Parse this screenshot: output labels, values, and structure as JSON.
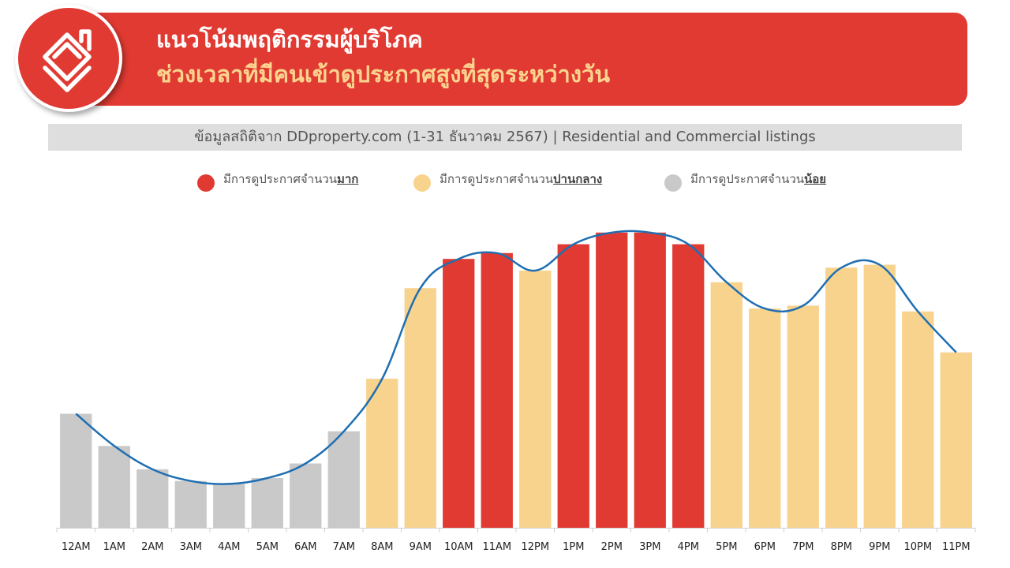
{
  "header": {
    "title_line1": "แนวโน้มพฤติกรรมผู้บริโภค",
    "title_line2": "ช่วงเวลาที่มีคนเข้าดูประกาศสูงที่สุดระหว่างวัน",
    "logo_icon": "ddproperty-house-logo-icon"
  },
  "subtitle": "ข้อมูลสถิติจาก DDproperty.com (1-31 ธันวาคม 2567) | Residential and Commercial listings",
  "legend": [
    {
      "prefix": "มีการดูประกาศจำนวน",
      "emphasis": "มาก",
      "color": "#e13a32"
    },
    {
      "prefix": "มีการดูประกาศจำนวน",
      "emphasis": "ปานกลาง",
      "color": "#f8d38e"
    },
    {
      "prefix": "มีการดูประกาศจำนวน",
      "emphasis": "น้อย",
      "color": "#c9c9c9"
    }
  ],
  "colors": {
    "high": "#e13a32",
    "medium": "#f8d38e",
    "low": "#c9c9c9",
    "trend_line": "#1f6fb2",
    "banner": "#e13a32"
  },
  "chart_data": {
    "type": "bar",
    "categories": [
      "12AM",
      "1AM",
      "2AM",
      "3AM",
      "4AM",
      "5AM",
      "6AM",
      "7AM",
      "8AM",
      "9AM",
      "10AM",
      "11AM",
      "12PM",
      "1PM",
      "2PM",
      "3PM",
      "4PM",
      "5PM",
      "6PM",
      "7PM",
      "8PM",
      "9PM",
      "10PM",
      "11PM"
    ],
    "values": [
      39,
      28,
      20,
      16,
      15,
      17,
      22,
      33,
      51,
      82,
      92,
      94,
      88,
      97,
      101,
      101,
      97,
      84,
      75,
      76,
      89,
      90,
      74,
      60
    ],
    "levels": [
      "low",
      "low",
      "low",
      "low",
      "low",
      "low",
      "low",
      "low",
      "medium",
      "medium",
      "high",
      "high",
      "medium",
      "high",
      "high",
      "high",
      "high",
      "medium",
      "medium",
      "medium",
      "medium",
      "medium",
      "medium",
      "medium"
    ],
    "trend_line": [
      39,
      28,
      20,
      16,
      15,
      17,
      22,
      33,
      51,
      82,
      92,
      94,
      88,
      97,
      101,
      101,
      97,
      84,
      75,
      76,
      89,
      90,
      74,
      60
    ],
    "ylim": [
      0,
      105
    ],
    "title": "",
    "xlabel": "",
    "ylabel": "",
    "grid": false
  }
}
